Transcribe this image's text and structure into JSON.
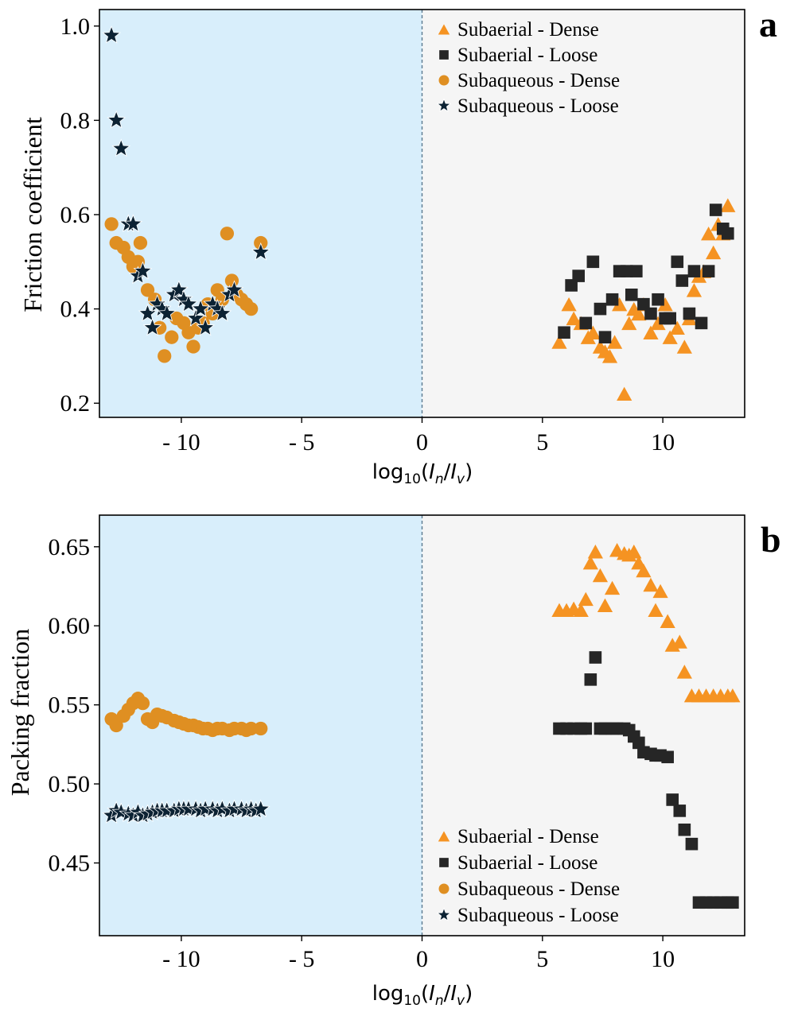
{
  "colors": {
    "subaqueous_bg": "#d8eefb",
    "subaerial_bg": "#f5f5f5",
    "subaerial_dense": "#f59322",
    "subaerial_loose": "#262626",
    "subaqueous_dense": "#df8f22",
    "subaqueous_loose": "#0c2233",
    "divider": "#5b7a90"
  },
  "legend_labels": [
    "Subaerial - Dense",
    "Subaerial - Loose",
    "Subaqueous - Dense",
    "Subaqueous - Loose"
  ],
  "chart_data": [
    {
      "type": "scatter",
      "panel_label": "a",
      "xlabel_main": "log",
      "xlabel_sub": "10",
      "xlabel_rest": "(",
      "xlabel_i1": "I",
      "xlabel_i1_sub": "n",
      "xlabel_slash": "/",
      "xlabel_i2": "I",
      "xlabel_i2_sub": "v",
      "xlabel_close": ")",
      "ylabel": "Friction coefficient",
      "xlim": [
        -13.4,
        13.4
      ],
      "ylim": [
        0.17,
        1.035
      ],
      "xticks": [
        -10,
        -5,
        0,
        5,
        10
      ],
      "xtick_labels": [
        "- 10",
        "- 5",
        "0",
        "5",
        "10"
      ],
      "yticks": [
        0.2,
        0.4,
        0.6,
        0.8,
        1.0
      ],
      "ytick_labels": [
        "0.2",
        "0.4",
        "0.6",
        "0.8",
        "1.0"
      ],
      "legend_position": "top-right",
      "series": [
        {
          "name": "Subaerial - Dense",
          "marker": "triangle",
          "x": [
            5.7,
            6.1,
            6.3,
            6.6,
            6.9,
            7.1,
            7.4,
            7.6,
            7.8,
            8.0,
            8.2,
            8.4,
            8.6,
            8.8,
            9.0,
            9.2,
            9.5,
            9.8,
            10.1,
            10.3,
            10.6,
            10.9,
            11.1,
            11.3,
            11.5,
            11.7,
            11.9,
            12.1,
            12.3,
            12.5,
            12.7
          ],
          "y": [
            0.33,
            0.41,
            0.38,
            0.37,
            0.34,
            0.35,
            0.32,
            0.31,
            0.3,
            0.33,
            0.41,
            0.22,
            0.37,
            0.4,
            0.39,
            0.41,
            0.35,
            0.37,
            0.41,
            0.34,
            0.36,
            0.32,
            0.38,
            0.44,
            0.47,
            0.48,
            0.56,
            0.52,
            0.58,
            0.56,
            0.62
          ]
        },
        {
          "name": "Subaerial - Loose",
          "marker": "square",
          "x": [
            5.9,
            6.2,
            6.5,
            6.8,
            7.1,
            7.4,
            7.6,
            7.9,
            8.2,
            8.5,
            8.7,
            8.9,
            9.2,
            9.5,
            9.8,
            10.1,
            10.3,
            10.6,
            10.8,
            11.1,
            11.3,
            11.6,
            11.9,
            12.2,
            12.5,
            12.7
          ],
          "y": [
            0.35,
            0.45,
            0.47,
            0.37,
            0.5,
            0.4,
            0.34,
            0.42,
            0.48,
            0.48,
            0.43,
            0.48,
            0.41,
            0.39,
            0.42,
            0.38,
            0.38,
            0.5,
            0.46,
            0.39,
            0.48,
            0.37,
            0.48,
            0.61,
            0.57,
            0.56
          ]
        },
        {
          "name": "Subaqueous - Dense",
          "marker": "circle",
          "x": [
            -12.9,
            -12.7,
            -12.4,
            -12.2,
            -12.0,
            -11.8,
            -11.7,
            -11.4,
            -11.1,
            -10.9,
            -10.7,
            -10.4,
            -10.2,
            -9.9,
            -9.7,
            -9.5,
            -9.3,
            -9.1,
            -8.9,
            -8.7,
            -8.5,
            -8.3,
            -8.1,
            -7.9,
            -7.7,
            -7.5,
            -7.3,
            -7.1,
            -6.7
          ],
          "y": [
            0.58,
            0.54,
            0.53,
            0.51,
            0.49,
            0.5,
            0.54,
            0.44,
            0.42,
            0.36,
            0.3,
            0.34,
            0.38,
            0.37,
            0.35,
            0.32,
            0.36,
            0.37,
            0.41,
            0.39,
            0.44,
            0.42,
            0.56,
            0.46,
            0.43,
            0.42,
            0.41,
            0.4,
            0.54
          ]
        },
        {
          "name": "Subaqueous - Loose",
          "marker": "star",
          "x": [
            -12.9,
            -12.7,
            -12.5,
            -12.2,
            -12.0,
            -11.8,
            -11.6,
            -11.4,
            -11.2,
            -11.0,
            -10.8,
            -10.6,
            -10.3,
            -10.1,
            -9.9,
            -9.7,
            -9.4,
            -9.2,
            -9.0,
            -8.7,
            -8.5,
            -8.3,
            -8.0,
            -7.8,
            -6.7
          ],
          "y": [
            0.98,
            0.8,
            0.74,
            0.58,
            0.58,
            0.47,
            0.48,
            0.39,
            0.36,
            0.41,
            0.4,
            0.39,
            0.43,
            0.44,
            0.42,
            0.41,
            0.38,
            0.4,
            0.36,
            0.41,
            0.4,
            0.39,
            0.43,
            0.44,
            0.52
          ]
        }
      ]
    },
    {
      "type": "scatter",
      "panel_label": "b",
      "xlabel_main": "log",
      "xlabel_sub": "10",
      "xlabel_rest": "(",
      "xlabel_i1": "I",
      "xlabel_i1_sub": "n",
      "xlabel_slash": "/",
      "xlabel_i2": "I",
      "xlabel_i2_sub": "v",
      "xlabel_close": ")",
      "ylabel": "Packing fraction",
      "xlim": [
        -13.4,
        13.4
      ],
      "ylim": [
        0.404,
        0.67
      ],
      "xticks": [
        -10,
        -5,
        0,
        5,
        10
      ],
      "xtick_labels": [
        "- 10",
        "- 5",
        "0",
        "5",
        "10"
      ],
      "yticks": [
        0.45,
        0.5,
        0.55,
        0.6,
        0.65
      ],
      "ytick_labels": [
        "0.45",
        "0.50",
        "0.55",
        "0.60",
        "0.65"
      ],
      "legend_position": "bottom-right",
      "series": [
        {
          "name": "Subaerial - Dense",
          "marker": "triangle",
          "x": [
            5.7,
            6.0,
            6.3,
            6.6,
            6.8,
            7.0,
            7.2,
            7.4,
            7.6,
            7.9,
            8.1,
            8.4,
            8.6,
            8.8,
            9.0,
            9.2,
            9.5,
            9.7,
            9.9,
            10.2,
            10.4,
            10.7,
            10.9,
            11.2,
            11.5,
            11.8,
            12.1,
            12.4,
            12.7,
            12.9
          ],
          "y": [
            0.61,
            0.61,
            0.611,
            0.61,
            0.617,
            0.64,
            0.647,
            0.632,
            0.613,
            0.624,
            0.648,
            0.646,
            0.645,
            0.647,
            0.64,
            0.635,
            0.626,
            0.61,
            0.622,
            0.603,
            0.588,
            0.59,
            0.571,
            0.556,
            0.556,
            0.556,
            0.556,
            0.556,
            0.556,
            0.556
          ]
        },
        {
          "name": "Subaerial - Loose",
          "marker": "square",
          "x": [
            5.7,
            6.0,
            6.3,
            6.6,
            6.8,
            7.0,
            7.2,
            7.4,
            7.6,
            7.9,
            8.1,
            8.4,
            8.6,
            8.8,
            9.0,
            9.2,
            9.5,
            9.7,
            9.9,
            10.2,
            10.4,
            10.7,
            10.9,
            11.2,
            11.5,
            11.8,
            12.1,
            12.4,
            12.7,
            12.9
          ],
          "y": [
            0.535,
            0.535,
            0.535,
            0.535,
            0.535,
            0.566,
            0.58,
            0.535,
            0.535,
            0.535,
            0.535,
            0.535,
            0.534,
            0.53,
            0.526,
            0.52,
            0.519,
            0.518,
            0.518,
            0.517,
            0.49,
            0.483,
            0.471,
            0.462,
            0.425,
            0.425,
            0.425,
            0.425,
            0.425,
            0.425
          ]
        },
        {
          "name": "Subaqueous - Dense",
          "marker": "circle",
          "x": [
            -12.9,
            -12.7,
            -12.4,
            -12.2,
            -12.0,
            -11.8,
            -11.6,
            -11.4,
            -11.2,
            -11.0,
            -10.8,
            -10.6,
            -10.3,
            -10.1,
            -9.9,
            -9.7,
            -9.5,
            -9.3,
            -9.1,
            -8.9,
            -8.7,
            -8.5,
            -8.3,
            -8.0,
            -7.8,
            -7.5,
            -7.3,
            -7.1,
            -6.7
          ],
          "y": [
            0.541,
            0.537,
            0.543,
            0.547,
            0.551,
            0.554,
            0.551,
            0.541,
            0.539,
            0.544,
            0.543,
            0.542,
            0.54,
            0.539,
            0.538,
            0.537,
            0.537,
            0.536,
            0.535,
            0.535,
            0.534,
            0.535,
            0.535,
            0.534,
            0.535,
            0.535,
            0.534,
            0.535,
            0.535
          ]
        },
        {
          "name": "Subaqueous - Loose",
          "marker": "star",
          "x": [
            -12.9,
            -12.7,
            -12.5,
            -12.2,
            -12.0,
            -11.8,
            -11.6,
            -11.4,
            -11.2,
            -11.0,
            -10.8,
            -10.6,
            -10.3,
            -10.1,
            -9.9,
            -9.7,
            -9.4,
            -9.2,
            -9.0,
            -8.7,
            -8.5,
            -8.3,
            -8.0,
            -7.8,
            -7.5,
            -7.3,
            -7.1,
            -6.9,
            -6.7
          ],
          "y": [
            0.48,
            0.483,
            0.482,
            0.481,
            0.48,
            0.482,
            0.48,
            0.481,
            0.482,
            0.483,
            0.483,
            0.483,
            0.483,
            0.484,
            0.484,
            0.484,
            0.484,
            0.483,
            0.484,
            0.484,
            0.483,
            0.484,
            0.483,
            0.484,
            0.484,
            0.483,
            0.484,
            0.483,
            0.484
          ]
        }
      ]
    }
  ]
}
